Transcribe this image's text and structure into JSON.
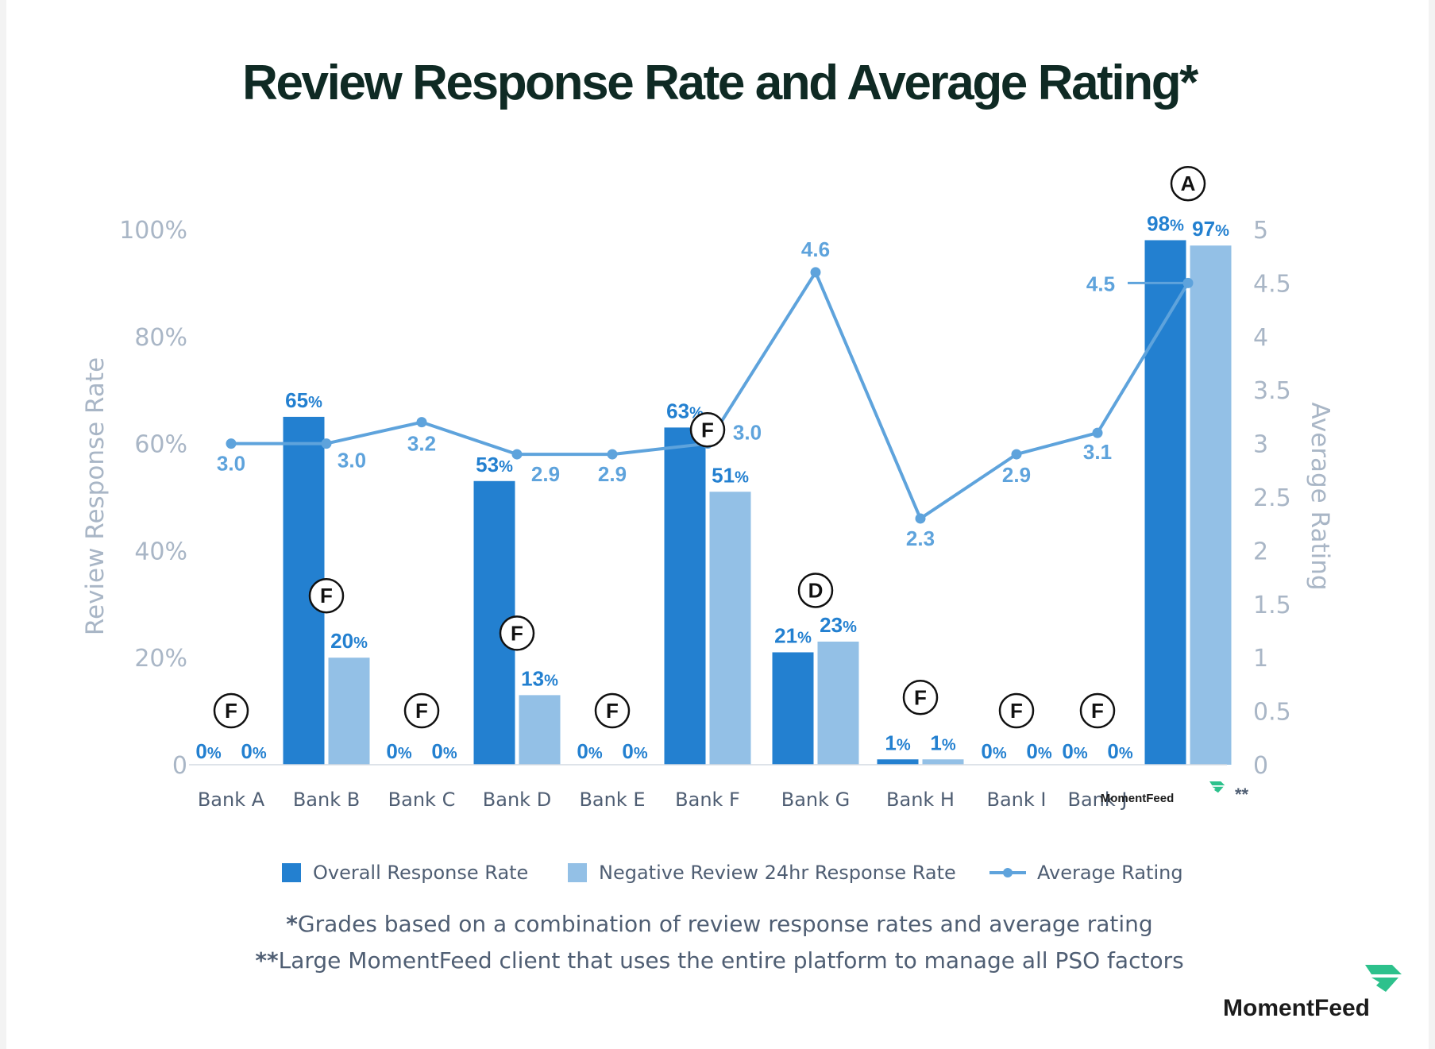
{
  "chart_data": {
    "type": "bar",
    "title": "Review Response Rate and Average Rating*",
    "categories": [
      "Bank A",
      "Bank B",
      "Bank C",
      "Bank D",
      "Bank E",
      "Bank F",
      "Bank G",
      "Bank H",
      "Bank I",
      "Bank J",
      "MomentFeed"
    ],
    "series": [
      {
        "name": "Overall Response Rate",
        "type": "bar",
        "axis": "left",
        "values": [
          0,
          65,
          0,
          53,
          0,
          63,
          21,
          1,
          0,
          0,
          98
        ],
        "labels": [
          "0",
          "65",
          "0",
          "53",
          "0",
          "63",
          "21",
          "1",
          "0",
          "0",
          "98"
        ],
        "color": "#2380d0"
      },
      {
        "name": "Negative Review 24hr Response Rate",
        "type": "bar",
        "axis": "left",
        "values": [
          0,
          20,
          0,
          13,
          0,
          51,
          23,
          1,
          0,
          0,
          97
        ],
        "labels": [
          "0",
          "20",
          "0",
          "13",
          "0",
          "51",
          "23",
          "1",
          "0",
          "0",
          "97"
        ],
        "color": "#93c0e6"
      },
      {
        "name": "Average Rating",
        "type": "line",
        "axis": "right",
        "values": [
          3.0,
          3.0,
          3.2,
          2.9,
          2.9,
          3.0,
          4.6,
          2.3,
          2.9,
          3.1,
          4.5
        ],
        "labels": [
          "3.0",
          "3.0",
          "3.2",
          "2.9",
          "2.9",
          "3.0",
          "4.6",
          "2.3",
          "2.9",
          "3.1",
          "4.5"
        ],
        "color": "#5ea3dc"
      }
    ],
    "grades": [
      "F",
      "F",
      "F",
      "F",
      "F",
      "F",
      "D",
      "F",
      "F",
      "F",
      "A"
    ],
    "percent_sign": "%",
    "ylabel": "Review Response Rate",
    "ylabel_right": "Average Rating",
    "ylim": [
      0,
      100
    ],
    "ylim_right": [
      0,
      5
    ],
    "yticks": [
      {
        "value": 0,
        "label": "0"
      },
      {
        "value": 20,
        "label": "20%"
      },
      {
        "value": 40,
        "label": "40%"
      },
      {
        "value": 60,
        "label": "60%"
      },
      {
        "value": 80,
        "label": "80%"
      },
      {
        "value": 100,
        "label": "100%"
      }
    ],
    "yticks_right": [
      {
        "value": 0,
        "label": "0"
      },
      {
        "value": 0.5,
        "label": "0.5"
      },
      {
        "value": 1,
        "label": "1"
      },
      {
        "value": 1.5,
        "label": "1.5"
      },
      {
        "value": 2,
        "label": "2"
      },
      {
        "value": 2.5,
        "label": "2.5"
      },
      {
        "value": 3,
        "label": "3"
      },
      {
        "value": 3.5,
        "label": "3.5"
      },
      {
        "value": 4,
        "label": "4"
      },
      {
        "value": 4.5,
        "label": "4.5"
      },
      {
        "value": 5,
        "label": "5"
      }
    ],
    "legend_position": "bottom",
    "grid": false
  },
  "momentfeed_category_mark": "**",
  "footnotes": [
    {
      "marker": "*",
      "text": "Grades based on a combination of review response rates and average rating"
    },
    {
      "marker": "**",
      "text": "Large MomentFeed client that uses the entire platform to manage all PSO factors"
    }
  ],
  "logo": {
    "text": "MomentFeed",
    "color": "#2dc18c"
  }
}
